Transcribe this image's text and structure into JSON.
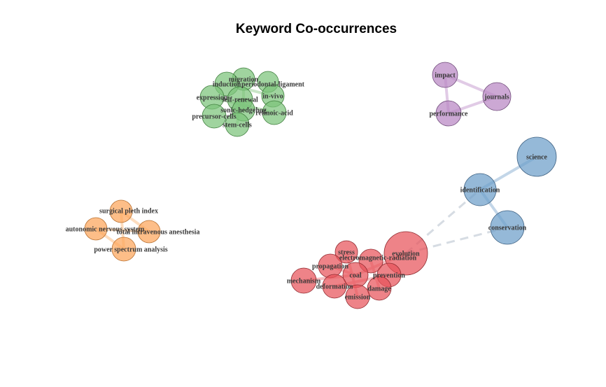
{
  "title": "Keyword Co-occurrences",
  "clusters": [
    {
      "name": "green",
      "fill": "#7cc47a",
      "stroke": "#3e7d3c",
      "edge": "#bfe0bd"
    },
    {
      "name": "purple",
      "fill": "#b987c4",
      "stroke": "#6e4a78",
      "edge": "#dcc2e2"
    },
    {
      "name": "blue",
      "fill": "#6c9ec9",
      "stroke": "#3c5f80",
      "edge": "#b9cfe4"
    },
    {
      "name": "orange",
      "fill": "#fca55a",
      "stroke": "#b87030",
      "edge": "#fdd7b4"
    },
    {
      "name": "red",
      "fill": "#e8535a",
      "stroke": "#8e2a2f",
      "edge": "#f4b5b8"
    }
  ],
  "nodes": [
    {
      "id": "migration",
      "label": "migration",
      "cluster": "green"
    },
    {
      "id": "induction",
      "label": "induction",
      "cluster": "green"
    },
    {
      "id": "periodontal-ligament",
      "label": "periodontal-ligament",
      "cluster": "green"
    },
    {
      "id": "expression",
      "label": "expression",
      "cluster": "green"
    },
    {
      "id": "self-renewal",
      "label": "self-renewal",
      "cluster": "green"
    },
    {
      "id": "in-vivo",
      "label": "in-vivo",
      "cluster": "green"
    },
    {
      "id": "precursor-cells",
      "label": "precursor-cells",
      "cluster": "green"
    },
    {
      "id": "sonic-hedgehog",
      "label": "sonic-hedgehog",
      "cluster": "green"
    },
    {
      "id": "retinoic-acid",
      "label": "retinoic-acid",
      "cluster": "green"
    },
    {
      "id": "stem-cells",
      "label": "stem-cells",
      "cluster": "green"
    },
    {
      "id": "impact",
      "label": "impact",
      "cluster": "purple"
    },
    {
      "id": "journals",
      "label": "journals",
      "cluster": "purple"
    },
    {
      "id": "performance",
      "label": "performance",
      "cluster": "purple"
    },
    {
      "id": "science",
      "label": "science",
      "cluster": "blue"
    },
    {
      "id": "identification",
      "label": "identification",
      "cluster": "blue"
    },
    {
      "id": "conservation",
      "label": "conservation",
      "cluster": "blue"
    },
    {
      "id": "surgical-pleth-index",
      "label": "surgical pleth index",
      "cluster": "orange"
    },
    {
      "id": "autonomic-nervous-system",
      "label": "autonomic nervous system",
      "cluster": "orange"
    },
    {
      "id": "total-intravenous-anesthesia",
      "label": "total intravenous anesthesia",
      "cluster": "orange"
    },
    {
      "id": "power-spectrum-analysis",
      "label": "power spectrum analysis",
      "cluster": "orange"
    },
    {
      "id": "evolution",
      "label": "evolution",
      "cluster": "red"
    },
    {
      "id": "stress",
      "label": "stress",
      "cluster": "red"
    },
    {
      "id": "electromagnetic-radiation",
      "label": "electromagnetic-radiation",
      "cluster": "red"
    },
    {
      "id": "propagation",
      "label": "propagation",
      "cluster": "red"
    },
    {
      "id": "coal",
      "label": "coal",
      "cluster": "red"
    },
    {
      "id": "prevention",
      "label": "prevention",
      "cluster": "red"
    },
    {
      "id": "mechanism",
      "label": "mechanism",
      "cluster": "red"
    },
    {
      "id": "deformation",
      "label": "deformation",
      "cluster": "red"
    },
    {
      "id": "damage",
      "label": "damage",
      "cluster": "red"
    },
    {
      "id": "emission",
      "label": "emission",
      "cluster": "red"
    }
  ],
  "edges": [
    {
      "from": "impact",
      "to": "journals",
      "style": "solid"
    },
    {
      "from": "impact",
      "to": "performance",
      "style": "solid"
    },
    {
      "from": "performance",
      "to": "journals",
      "style": "solid"
    },
    {
      "from": "identification",
      "to": "science",
      "style": "solid"
    },
    {
      "from": "identification",
      "to": "conservation",
      "style": "solid"
    },
    {
      "from": "evolution",
      "to": "identification",
      "style": "dashed"
    },
    {
      "from": "evolution",
      "to": "conservation",
      "style": "dashed"
    },
    {
      "from": "surgical-pleth-index",
      "to": "power-spectrum-analysis",
      "style": "solid"
    },
    {
      "from": "autonomic-nervous-system",
      "to": "total-intravenous-anesthesia",
      "style": "solid"
    },
    {
      "from": "surgical-pleth-index",
      "to": "total-intravenous-anesthesia",
      "style": "solid"
    },
    {
      "from": "autonomic-nervous-system",
      "to": "power-spectrum-analysis",
      "style": "solid"
    },
    {
      "from": "propagation",
      "to": "coal",
      "style": "solid"
    },
    {
      "from": "mechanism",
      "to": "coal",
      "style": "solid"
    },
    {
      "from": "deformation",
      "to": "prevention",
      "style": "solid"
    },
    {
      "from": "stress",
      "to": "emission",
      "style": "solid"
    },
    {
      "from": "electromagnetic-radiation",
      "to": "damage",
      "style": "solid"
    },
    {
      "from": "evolution",
      "to": "coal",
      "style": "solid"
    },
    {
      "from": "induction",
      "to": "in-vivo",
      "style": "solid"
    },
    {
      "from": "expression",
      "to": "retinoic-acid",
      "style": "solid"
    },
    {
      "from": "self-renewal",
      "to": "stem-cells",
      "style": "solid"
    },
    {
      "from": "migration",
      "to": "sonic-hedgehog",
      "style": "solid"
    }
  ]
}
